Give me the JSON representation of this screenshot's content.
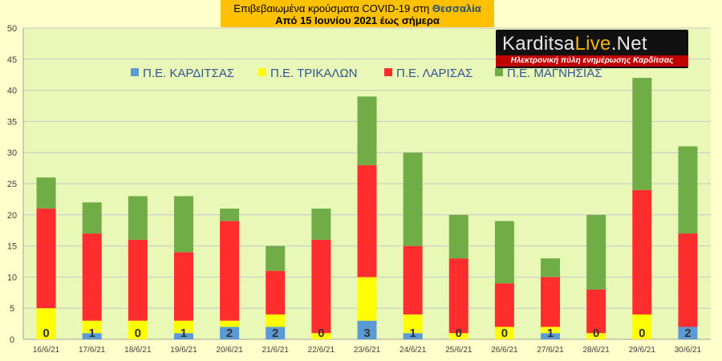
{
  "title": {
    "line1_prefix": "Επιβεβαιωμένα κρούσματα COVID-19 στη ",
    "line1_region": "Θεσσαλία",
    "line2": "Από 15 Ιουνίου 2021 έως σήμερα"
  },
  "logo": {
    "brand_prefix": "Karditsa",
    "brand_live": "Live",
    "brand_suffix": ".Net",
    "subtitle": "Ηλεκτρονική πύλη ενημέρωσης Καρδίτσας"
  },
  "colors": {
    "background": "#ffffcc",
    "plot_background": "#e9f7b7",
    "title_box": "#ffc000",
    "karditsa": "#5b9bd5",
    "trikala": "#ffff00",
    "larisa": "#ff2d2d",
    "magnisia": "#70ad47"
  },
  "chart_data": {
    "type": "bar",
    "stacked": true,
    "categories": [
      "16/6/21",
      "17/6/21",
      "18/6/21",
      "19/6/21",
      "20/6/21",
      "21/6/21",
      "22/6/21",
      "23/6/21",
      "24/6/21",
      "25/6/21",
      "26/6/21",
      "27/6/21",
      "28/6/21",
      "29/6/21",
      "30/6/21"
    ],
    "series": [
      {
        "name": "Π.Ε. ΚΑΡΔΙΤΣΑΣ",
        "color": "#5b9bd5",
        "values": [
          0,
          1,
          0,
          1,
          2,
          2,
          0,
          3,
          1,
          0,
          0,
          1,
          0,
          0,
          2
        ]
      },
      {
        "name": "Π.Ε. ΤΡΙΚΑΛΩΝ",
        "color": "#ffff00",
        "values": [
          5,
          2,
          3,
          2,
          1,
          2,
          1,
          7,
          3,
          1,
          2,
          1,
          1,
          4,
          0
        ]
      },
      {
        "name": "Π.Ε. ΛΑΡΙΣΑΣ",
        "color": "#ff2d2d",
        "values": [
          16,
          14,
          13,
          11,
          16,
          7,
          15,
          18,
          11,
          12,
          7,
          8,
          7,
          20,
          15
        ]
      },
      {
        "name": "Π.Ε. ΜΑΓΝΗΣΙΑΣ",
        "color": "#70ad47",
        "values": [
          5,
          5,
          7,
          9,
          2,
          4,
          5,
          11,
          15,
          7,
          10,
          3,
          12,
          18,
          14
        ]
      }
    ],
    "data_labels": [
      "0",
      "1",
      "0",
      "1",
      "2",
      "2",
      "0",
      "3",
      "1",
      "0",
      "0",
      "1",
      "0",
      "0",
      "2"
    ],
    "ylim": [
      0,
      50
    ],
    "yticks": [
      "0",
      "5",
      "10",
      "15",
      "20",
      "25",
      "30",
      "35",
      "40",
      "45",
      "50"
    ],
    "grid": true,
    "legend": "top"
  }
}
